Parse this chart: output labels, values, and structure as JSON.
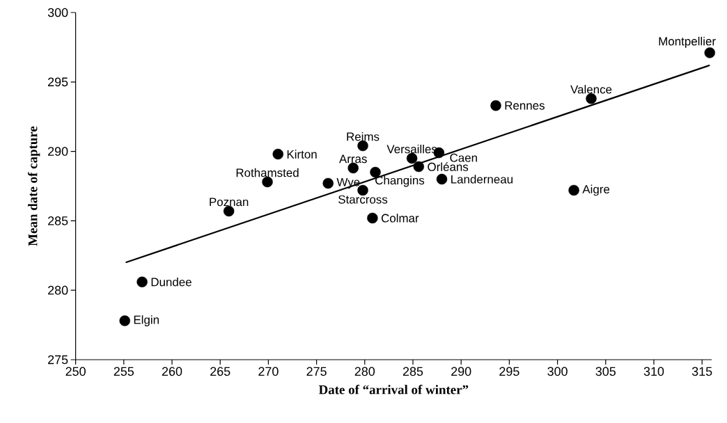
{
  "chart_data": {
    "type": "scatter",
    "xlabel": "Date of “arrival of winter”",
    "ylabel": "Mean date of capture",
    "xlim": [
      250,
      316
    ],
    "ylim": [
      275,
      300
    ],
    "xticks": [
      250,
      255,
      260,
      265,
      270,
      275,
      280,
      285,
      290,
      295,
      300,
      305,
      310,
      315
    ],
    "yticks": [
      275,
      280,
      285,
      290,
      295,
      300
    ],
    "series": [
      {
        "type": "scatter",
        "marker": "circle",
        "color": "#000000",
        "x": [
          255.1,
          256.9,
          265.9,
          269.9,
          271.0,
          276.2,
          278.8,
          279.8,
          281.1,
          279.8,
          280.8,
          284.9,
          287.7,
          285.6,
          288.0,
          293.6,
          303.5,
          301.7,
          315.8
        ],
        "values": [
          277.8,
          280.6,
          285.7,
          287.8,
          289.8,
          287.7,
          288.8,
          290.4,
          288.5,
          287.2,
          285.2,
          289.5,
          289.9,
          288.9,
          288.0,
          293.3,
          293.8,
          287.2,
          297.1
        ]
      },
      {
        "type": "line",
        "line_style": "solid",
        "color": "#000000",
        "x": [
          255.2,
          315.8
        ],
        "values": [
          282.0,
          296.2
        ]
      }
    ],
    "annotations": [
      {
        "text": "Elgin",
        "x": 255.1,
        "y": 277.8
      },
      {
        "text": "Dundee",
        "x": 256.9,
        "y": 280.6
      },
      {
        "text": "Poznan",
        "x": 265.9,
        "y": 285.7
      },
      {
        "text": "Rothamsted",
        "x": 269.9,
        "y": 287.8
      },
      {
        "text": "Kirton",
        "x": 271.0,
        "y": 289.8
      },
      {
        "text": "Wye",
        "x": 276.2,
        "y": 287.7
      },
      {
        "text": "Arras",
        "x": 278.8,
        "y": 288.8
      },
      {
        "text": "Reims",
        "x": 279.8,
        "y": 290.4
      },
      {
        "text": "Changins",
        "x": 281.1,
        "y": 288.5
      },
      {
        "text": "Starcross",
        "x": 279.8,
        "y": 287.2
      },
      {
        "text": "Colmar",
        "x": 280.8,
        "y": 285.2
      },
      {
        "text": "Versailles",
        "x": 284.9,
        "y": 289.5
      },
      {
        "text": "Caen",
        "x": 287.7,
        "y": 289.9
      },
      {
        "text": "Orléans",
        "x": 285.6,
        "y": 288.9
      },
      {
        "text": "Landerneau",
        "x": 288.0,
        "y": 288.0
      },
      {
        "text": "Rennes",
        "x": 293.6,
        "y": 293.3
      },
      {
        "text": "Valence",
        "x": 303.5,
        "y": 293.8
      },
      {
        "text": "Aigre",
        "x": 301.7,
        "y": 287.2
      },
      {
        "text": "Montpellier",
        "x": 315.8,
        "y": 297.1
      }
    ]
  }
}
